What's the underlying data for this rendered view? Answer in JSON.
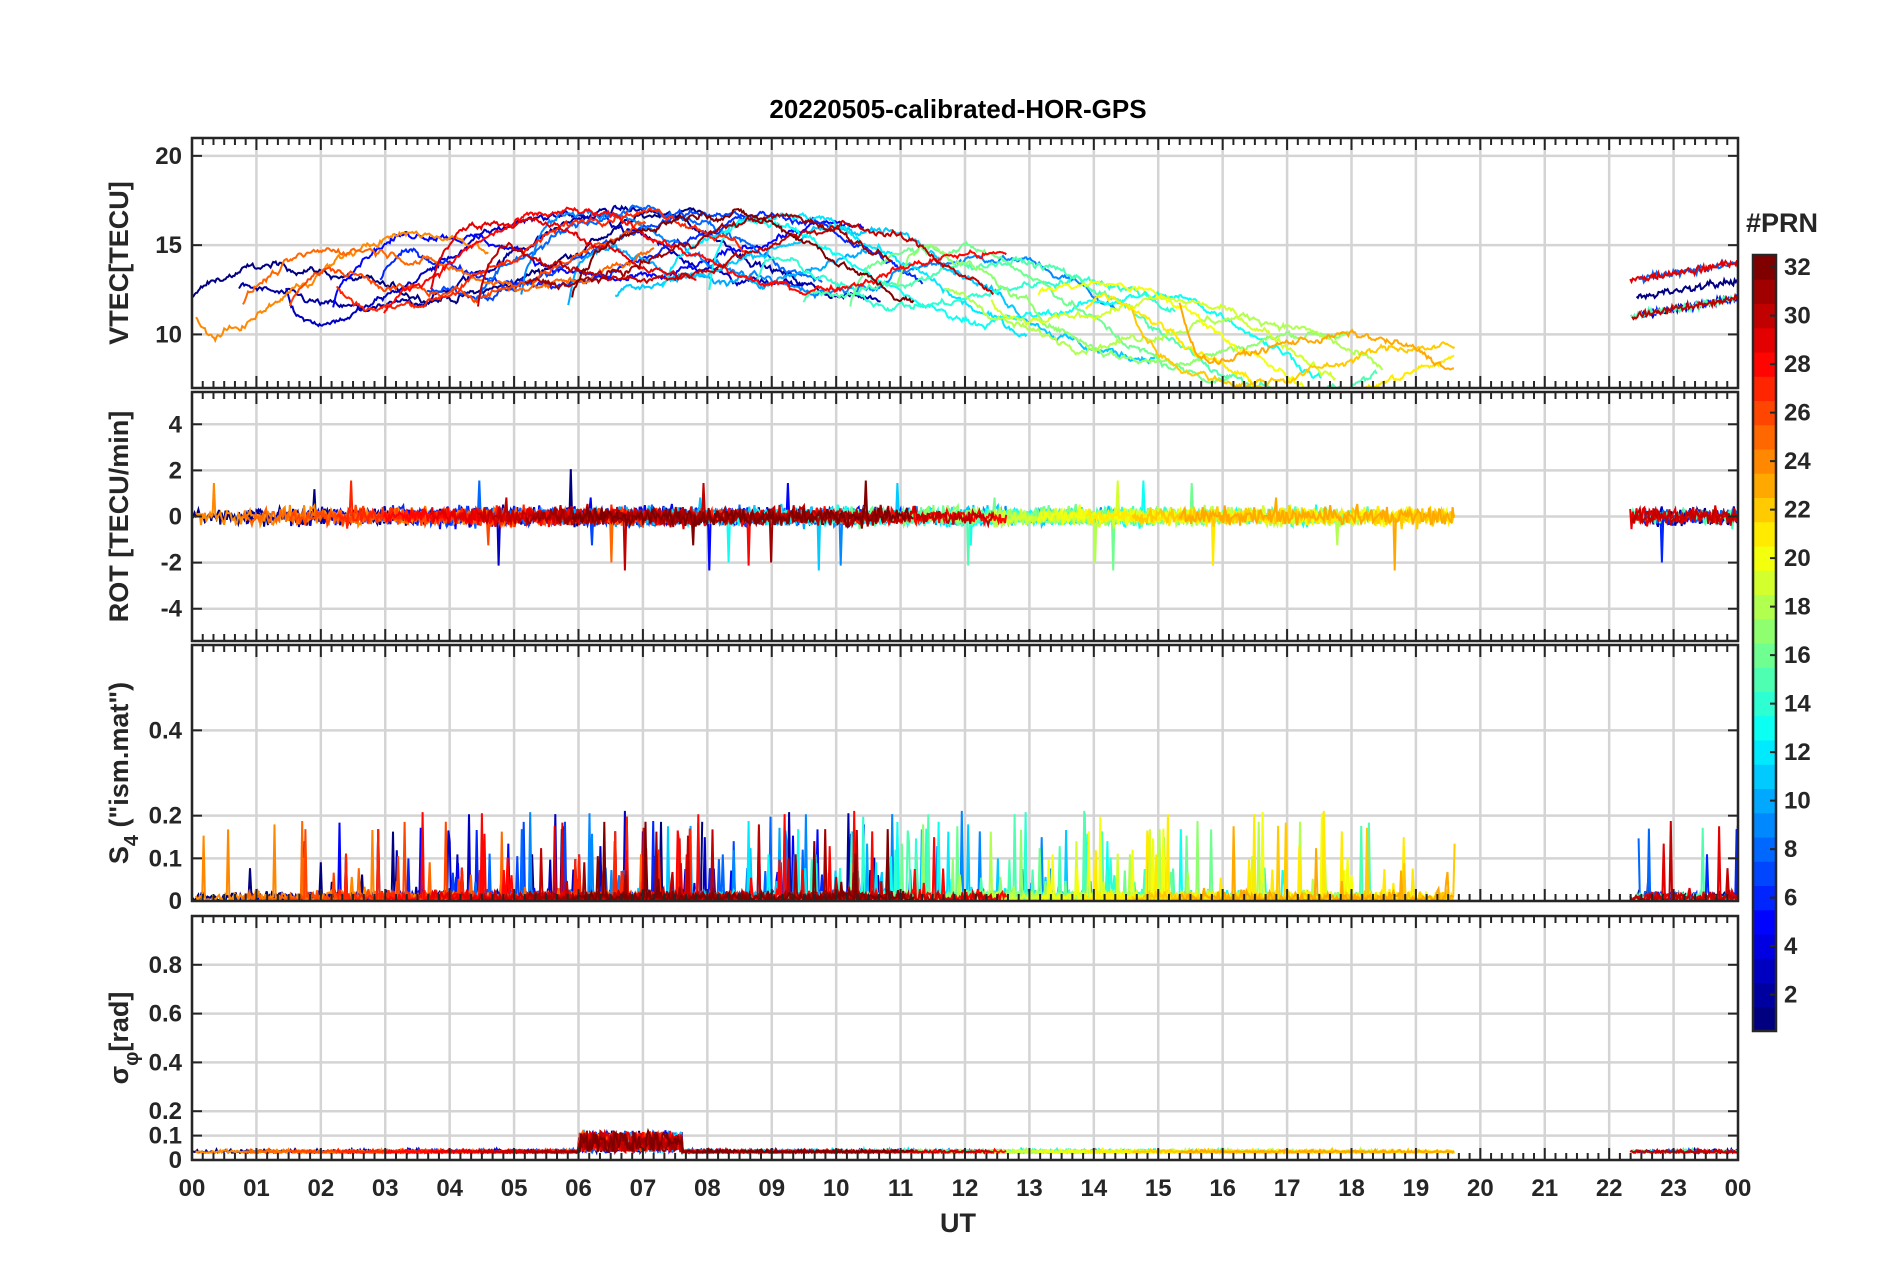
{
  "chart_data": {
    "type": "line",
    "title": "20220505-calibrated-HOR-GPS",
    "xlabel": "UT",
    "x_ticks": [
      "00",
      "01",
      "02",
      "03",
      "04",
      "05",
      "06",
      "07",
      "08",
      "09",
      "10",
      "11",
      "12",
      "13",
      "14",
      "15",
      "16",
      "17",
      "18",
      "19",
      "20",
      "21",
      "22",
      "23",
      "00"
    ],
    "x_range_hours": [
      0,
      24
    ],
    "data_gap_hours": [
      19.6,
      22.3
    ],
    "grid": true,
    "colorbar": {
      "label": "#PRN",
      "ticks": [
        "32",
        "30",
        "28",
        "26",
        "24",
        "22",
        "20",
        "18",
        "16",
        "14",
        "12",
        "10",
        "8",
        "6",
        "4",
        "2"
      ],
      "range": [
        1,
        32
      ],
      "colormap": "jet",
      "placement": "right"
    },
    "panels": [
      {
        "id": "vtec",
        "ylabel": "VTEC[TECU]",
        "ylim": [
          7,
          21
        ],
        "ytick_values": [
          10,
          15,
          20
        ],
        "ytick_labels": [
          "10",
          "15",
          "20"
        ]
      },
      {
        "id": "rot",
        "ylabel": "ROT [TECU/min]",
        "ylim": [
          -5.4,
          5.4
        ],
        "ytick_values": [
          -4,
          -2,
          0,
          2,
          4
        ],
        "ytick_labels": [
          "-4",
          "-2",
          "0",
          "2",
          "4"
        ]
      },
      {
        "id": "s4",
        "ylabel": "S",
        "ylabel_sub": "4",
        "ylabel_rest": " (\"ism.mat\")",
        "ylim": [
          0,
          0.6
        ],
        "ytick_values": [
          0,
          0.1,
          0.2,
          0.4
        ],
        "ytick_labels": [
          "0",
          "0.1",
          "0.2",
          "0.4"
        ]
      },
      {
        "id": "sigphi",
        "ylabel": "σ",
        "ylabel_sub": "φ",
        "ylabel_rest": "[rad]",
        "ylim": [
          0,
          1
        ],
        "ytick_values": [
          0,
          0.1,
          0.2,
          0.4,
          0.6,
          0.8
        ],
        "ytick_labels": [
          "0",
          "0.1",
          "0.2",
          "0.4",
          "0.6",
          "0.8"
        ]
      }
    ]
  }
}
